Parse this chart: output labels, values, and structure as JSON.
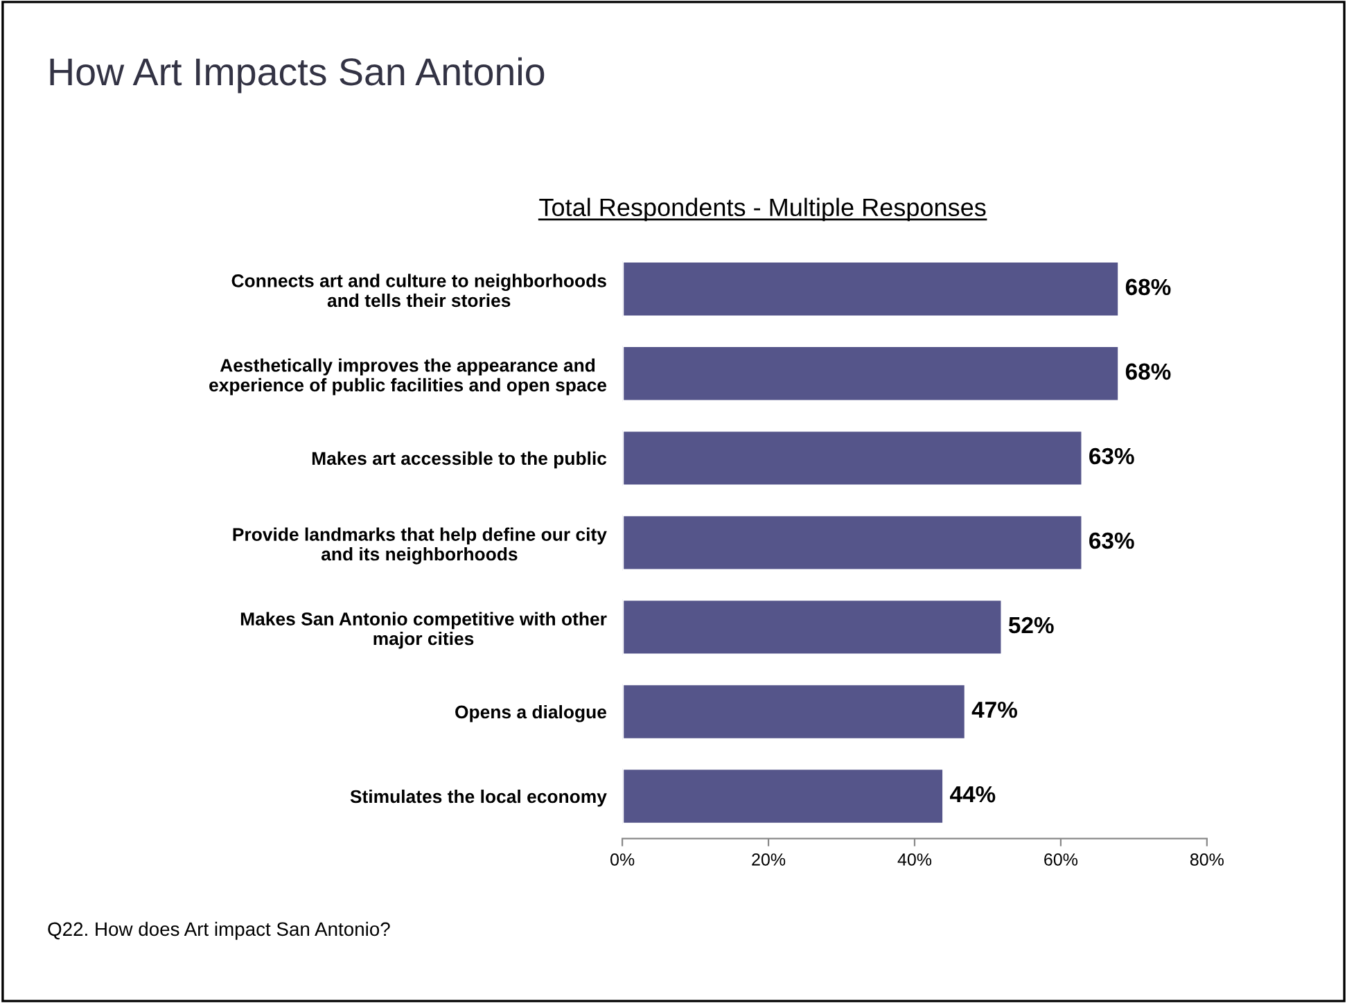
{
  "chart_data": {
    "type": "bar",
    "orientation": "horizontal",
    "title": "How Art Impacts San Antonio",
    "subtitle": "Total Respondents - Multiple Responses",
    "categories": [
      "Connects art and culture to neighborhoods\nand tells their stories",
      "Aesthetically improves the appearance and\nexperience of public facilities and open space",
      "Makes art accessible to the public",
      "Provide landmarks that help define our city\nand its neighborhoods",
      "Makes San Antonio competitive with other\nmajor cities",
      "Opens a dialogue",
      "Stimulates the local economy"
    ],
    "values": [
      68,
      68,
      63,
      63,
      52,
      47,
      44
    ],
    "value_labels": [
      "68%",
      "68%",
      "63%",
      "63%",
      "52%",
      "47%",
      "44%"
    ],
    "color": "#55558a",
    "xlim": [
      0,
      80
    ],
    "xticks": [
      {
        "value": 0,
        "label": "0%"
      },
      {
        "value": 20,
        "label": "20%"
      },
      {
        "value": 40,
        "label": "40%"
      },
      {
        "value": 60,
        "label": "60%"
      },
      {
        "value": 80,
        "label": "80%"
      }
    ],
    "grid": false,
    "legend": false,
    "annotations": [
      "Q22. How does Art impact San Antonio?"
    ]
  }
}
